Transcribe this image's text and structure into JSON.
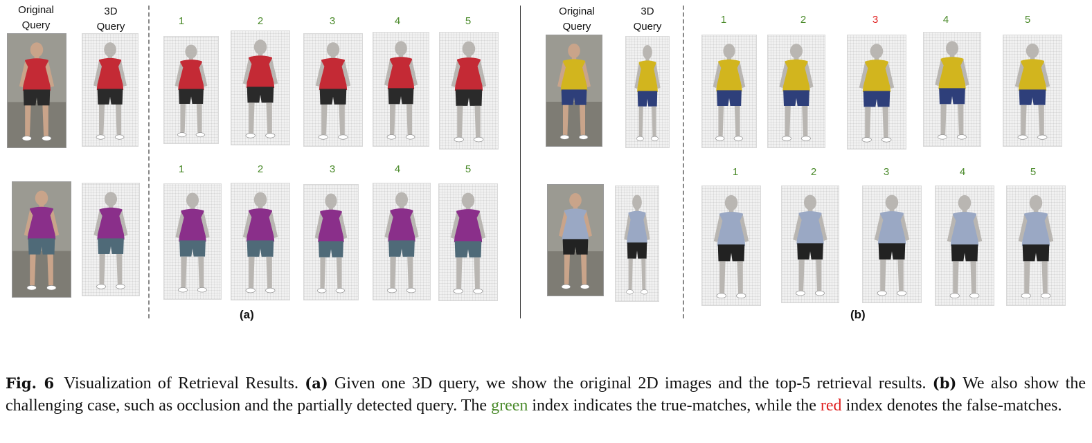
{
  "figure": {
    "panel_a": {
      "tag": "(a)",
      "header_original": [
        "Original",
        "Query"
      ],
      "header_3d": [
        "3D",
        "Query"
      ],
      "rows": [
        {
          "ranks": [
            "1",
            "2",
            "3",
            "4",
            "5"
          ],
          "rank_colors": [
            "#4a8a2a",
            "#4a8a2a",
            "#4a8a2a",
            "#4a8a2a",
            "#4a8a2a"
          ],
          "shirt": "#c42a35",
          "pants": "#2a2a2a"
        },
        {
          "ranks": [
            "1",
            "2",
            "3",
            "4",
            "5"
          ],
          "rank_colors": [
            "#4a8a2a",
            "#4a8a2a",
            "#4a8a2a",
            "#4a8a2a",
            "#4a8a2a"
          ],
          "shirt": "#8a2f8a",
          "pants": "#4f6a78"
        }
      ]
    },
    "panel_b": {
      "tag": "(b)",
      "header_original": [
        "Original",
        "Query"
      ],
      "header_3d": [
        "3D",
        "Query"
      ],
      "rows": [
        {
          "ranks": [
            "1",
            "2",
            "3",
            "4",
            "5"
          ],
          "rank_colors": [
            "#4a8a2a",
            "#4a8a2a",
            "#e02020",
            "#4a8a2a",
            "#4a8a2a"
          ],
          "shirt": "#d2b51e",
          "pants": "#2e3f7a"
        },
        {
          "ranks": [
            "1",
            "2",
            "3",
            "4",
            "5"
          ],
          "rank_colors": [
            "#4a8a2a",
            "#4a8a2a",
            "#4a8a2a",
            "#4a8a2a",
            "#4a8a2a"
          ],
          "shirt": "#9aa8c4",
          "pants": "#222222"
        }
      ]
    }
  },
  "caption": {
    "fig_label": "Fig. 6",
    "title": "Visualization of Retrieval Results.",
    "a_label": "(a)",
    "a_text": "Given one 3D query, we show the original 2D images and the top-5 retrieval results.",
    "b_label": "(b)",
    "b_text": "We also show the challenging case, such as occlusion and the partially detected query. The",
    "green_word": "green",
    "mid_text": "index indicates the true-matches, while the",
    "red_word": "red",
    "end_text": "index denotes the false-matches."
  }
}
